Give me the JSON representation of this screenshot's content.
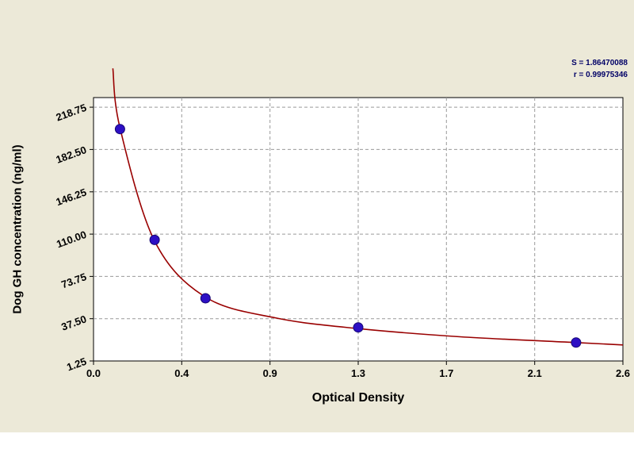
{
  "chart_data": {
    "type": "scatter",
    "title": "",
    "xlabel": "Optical Density",
    "ylabel": "Dog GH concentration (ng/ml)",
    "xlim": [
      0,
      2.6
    ],
    "ylim": [
      1.25,
      218.75
    ],
    "x_ticks": [
      "0.0",
      "0.4",
      "0.9",
      "1.3",
      "1.7",
      "2.1",
      "2.6"
    ],
    "x_tick_values": [
      0,
      0.4333,
      0.8667,
      1.3,
      1.7333,
      2.1667,
      2.6
    ],
    "y_ticks": [
      "1.25",
      "37.50",
      "73.75",
      "110.00",
      "146.25",
      "182.50",
      "218.75"
    ],
    "y_tick_values": [
      1.25,
      37.5,
      73.75,
      110.0,
      146.25,
      182.5,
      218.75
    ],
    "grid": "dashed",
    "legend": "none",
    "points": [
      {
        "x": 0.13,
        "y": 200
      },
      {
        "x": 0.3,
        "y": 105
      },
      {
        "x": 0.55,
        "y": 55
      },
      {
        "x": 1.3,
        "y": 30
      },
      {
        "x": 2.37,
        "y": 17
      }
    ],
    "curve_points": [
      [
        0.095,
        252
      ],
      [
        0.13,
        201
      ],
      [
        0.3,
        104
      ],
      [
        0.55,
        56
      ],
      [
        0.9,
        38
      ],
      [
        1.3,
        29
      ],
      [
        1.8,
        22
      ],
      [
        2.37,
        17
      ],
      [
        2.6,
        15
      ]
    ],
    "annotations": [
      "S = 1.86470088",
      "r = 0.99975346"
    ],
    "colors": {
      "point_fill": "#2d0fc4",
      "point_stroke": "#160773",
      "curve": "#990000",
      "background": "#ece9d8",
      "plot_bg": "#ffffff",
      "grid": "#9a9a9a",
      "frame": "#000000"
    }
  }
}
